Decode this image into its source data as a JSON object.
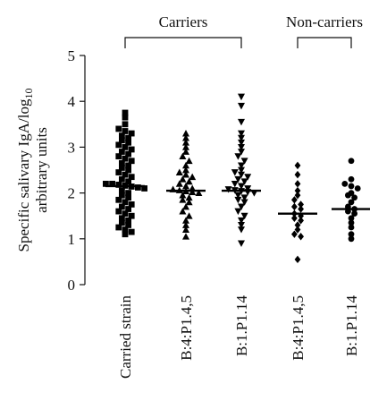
{
  "chart_data": {
    "type": "scatter",
    "title": "",
    "xlabel": "",
    "ylabel": "Specific salivary IgA/log",
    "ylabel_sub": "10",
    "ylabel_line2": "arbitrary units",
    "ylim": [
      0,
      5
    ],
    "y_ticks": [
      "0",
      "1",
      "2",
      "3",
      "4",
      "5"
    ],
    "grid": false,
    "legend": "none",
    "categories": [
      "Carried strain",
      "B:4:P1.4,5",
      "B:1.P1.14",
      "B:4:P1.4,5",
      "B:1.P1.14"
    ],
    "groups": [
      {
        "label": "Carriers",
        "from": 0,
        "to": 2
      },
      {
        "label": "Non-carriers",
        "from": 3,
        "to": 4
      }
    ],
    "series": [
      {
        "marker": "square",
        "median": 2.15,
        "values": [
          3.75,
          3.65,
          3.5,
          3.4,
          3.35,
          3.3,
          3.25,
          3.2,
          3.15,
          3.1,
          3.05,
          3.0,
          2.95,
          2.9,
          2.85,
          2.8,
          2.75,
          2.7,
          2.65,
          2.6,
          2.55,
          2.5,
          2.45,
          2.4,
          2.35,
          2.3,
          2.25,
          2.2,
          2.2,
          2.18,
          2.16,
          2.14,
          2.12,
          2.1,
          2.05,
          2.0,
          1.95,
          1.9,
          1.85,
          1.8,
          1.75,
          1.7,
          1.65,
          1.6,
          1.55,
          1.5,
          1.45,
          1.4,
          1.35,
          1.3,
          1.25,
          1.2,
          1.15,
          1.1
        ]
      },
      {
        "marker": "triangle-up",
        "median": 2.05,
        "values": [
          3.3,
          3.2,
          3.1,
          3.0,
          2.9,
          2.8,
          2.7,
          2.6,
          2.5,
          2.45,
          2.4,
          2.35,
          2.3,
          2.25,
          2.2,
          2.15,
          2.1,
          2.08,
          2.06,
          2.04,
          2.02,
          2.0,
          1.95,
          1.9,
          1.85,
          1.8,
          1.7,
          1.6,
          1.5,
          1.4,
          1.3,
          1.2,
          1.05
        ]
      },
      {
        "marker": "triangle-down",
        "median": 2.05,
        "values": [
          4.1,
          3.9,
          3.55,
          3.3,
          3.2,
          3.1,
          3.0,
          2.9,
          2.8,
          2.7,
          2.6,
          2.5,
          2.45,
          2.4,
          2.35,
          2.3,
          2.25,
          2.2,
          2.15,
          2.1,
          2.08,
          2.06,
          2.04,
          2.02,
          2.0,
          1.95,
          1.9,
          1.85,
          1.8,
          1.7,
          1.6,
          1.5,
          1.4,
          1.3,
          1.2,
          0.9
        ]
      },
      {
        "marker": "diamond",
        "median": 1.55,
        "values": [
          2.6,
          2.4,
          2.2,
          2.05,
          1.95,
          1.85,
          1.75,
          1.7,
          1.65,
          1.55,
          1.5,
          1.45,
          1.4,
          1.3,
          1.2,
          1.1,
          1.05,
          0.55
        ]
      },
      {
        "marker": "circle",
        "median": 1.65,
        "values": [
          2.7,
          2.3,
          2.2,
          2.15,
          2.1,
          2.0,
          1.95,
          1.9,
          1.8,
          1.7,
          1.65,
          1.6,
          1.55,
          1.45,
          1.35,
          1.25,
          1.1,
          1.0
        ]
      }
    ]
  }
}
